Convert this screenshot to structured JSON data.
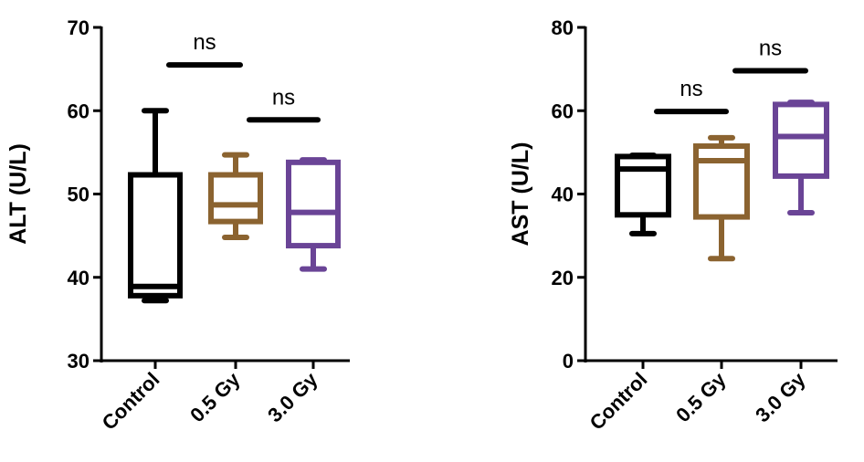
{
  "chart_data": [
    {
      "type": "box",
      "title": "",
      "xlabel": "",
      "ylabel": "ALT (U/L)",
      "ylim": [
        30,
        70
      ],
      "yticks": [
        30,
        40,
        50,
        60,
        70
      ],
      "ytick_labels": [
        "30",
        "40",
        "50",
        "60",
        "70"
      ],
      "categories": [
        "Control",
        "0.5 Gy",
        "3.0 Gy"
      ],
      "colors": [
        "#000000",
        "#8B6330",
        "#6A4496"
      ],
      "boxes": [
        {
          "name": "Control",
          "min": 37.2,
          "q1": 37.8,
          "median": 38.9,
          "q3": 52.3,
          "max": 60.0
        },
        {
          "name": "0.5 Gy",
          "min": 44.8,
          "q1": 46.7,
          "median": 48.7,
          "q3": 52.3,
          "max": 54.7
        },
        {
          "name": "3.0 Gy",
          "min": 41.0,
          "q1": 43.8,
          "median": 47.8,
          "q3": 53.8,
          "max": 54.1
        }
      ],
      "annotations": [
        {
          "text": "ns",
          "from": 0,
          "to": 1,
          "y": 65.5
        },
        {
          "text": "ns",
          "from": 1,
          "to": 2,
          "y": 58.9
        }
      ]
    },
    {
      "type": "box",
      "title": "",
      "xlabel": "",
      "ylabel": "AST (U/L)",
      "ylim": [
        0,
        80
      ],
      "yticks": [
        0,
        20,
        40,
        60,
        80
      ],
      "ytick_labels": [
        "0",
        "20",
        "40",
        "60",
        "80"
      ],
      "categories": [
        "Control",
        "0.5 Gy",
        "3.0 Gy"
      ],
      "colors": [
        "#000000",
        "#8B6330",
        "#6A4496"
      ],
      "boxes": [
        {
          "name": "Control",
          "min": 30.5,
          "q1": 35.0,
          "median": 46.0,
          "q3": 49.0,
          "max": 49.3
        },
        {
          "name": "0.5 Gy",
          "min": 24.5,
          "q1": 34.5,
          "median": 48.0,
          "q3": 51.5,
          "max": 53.5
        },
        {
          "name": "3.0 Gy",
          "min": 35.5,
          "q1": 44.3,
          "median": 53.8,
          "q3": 61.5,
          "max": 62.0
        }
      ],
      "annotations": [
        {
          "text": "ns",
          "from": 0,
          "to": 1,
          "y": 59.8
        },
        {
          "text": "ns",
          "from": 1,
          "to": 2,
          "y": 69.6
        }
      ]
    }
  ]
}
